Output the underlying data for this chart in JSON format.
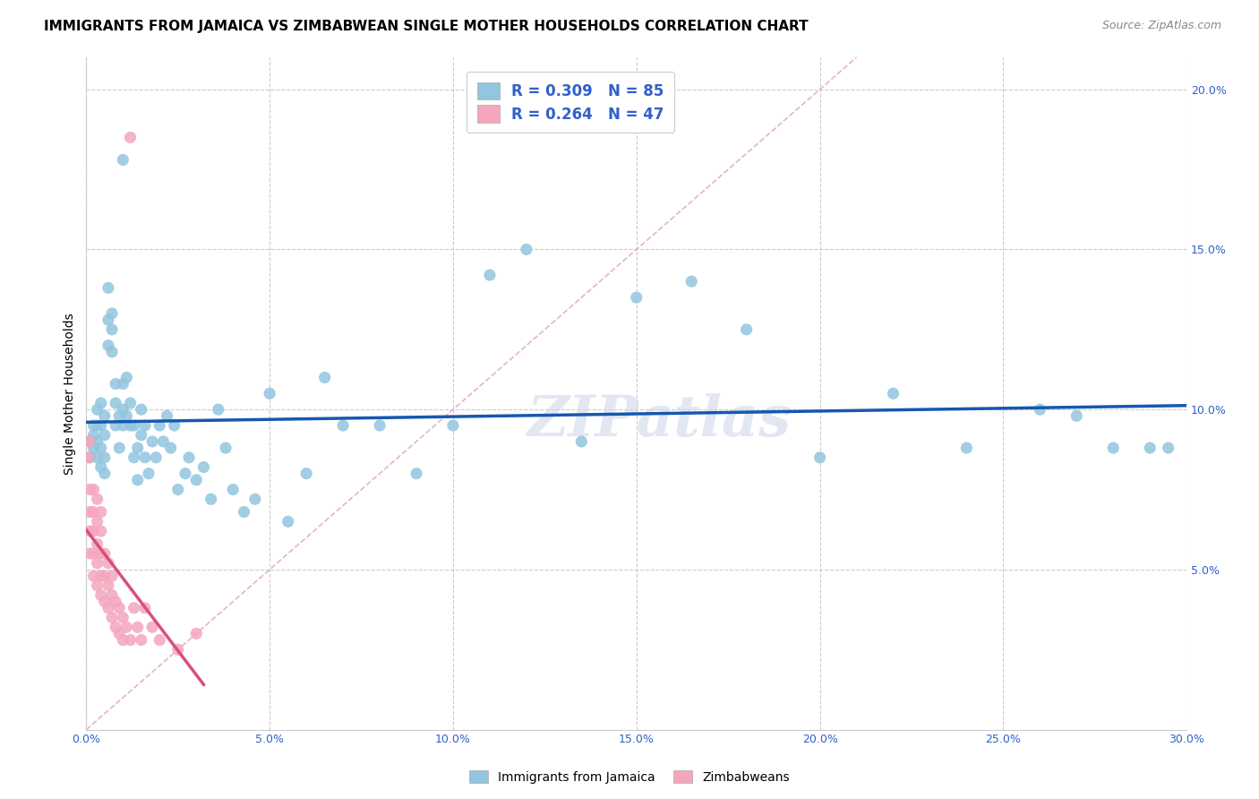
{
  "title": "IMMIGRANTS FROM JAMAICA VS ZIMBABWEAN SINGLE MOTHER HOUSEHOLDS CORRELATION CHART",
  "source": "Source: ZipAtlas.com",
  "ylabel": "Single Mother Households",
  "xlim": [
    0.0,
    0.3
  ],
  "ylim": [
    0.0,
    0.21
  ],
  "xticks": [
    0.0,
    0.05,
    0.1,
    0.15,
    0.2,
    0.25,
    0.3
  ],
  "yticks": [
    0.0,
    0.05,
    0.1,
    0.15,
    0.2
  ],
  "legend_label_blue": "Immigrants from Jamaica",
  "legend_label_pink": "Zimbabweans",
  "R_blue": 0.309,
  "N_blue": 85,
  "R_pink": 0.264,
  "N_pink": 47,
  "blue_color": "#92c5de",
  "pink_color": "#f4a6bd",
  "trend_blue": "#1558b0",
  "trend_pink": "#d94f7a",
  "trend_dashed_color": "#e0a0b8",
  "watermark": "ZIPatlas",
  "jamaica_x": [
    0.001,
    0.001,
    0.002,
    0.002,
    0.002,
    0.003,
    0.003,
    0.003,
    0.003,
    0.004,
    0.004,
    0.004,
    0.004,
    0.005,
    0.005,
    0.005,
    0.005,
    0.006,
    0.006,
    0.006,
    0.007,
    0.007,
    0.007,
    0.008,
    0.008,
    0.008,
    0.009,
    0.009,
    0.01,
    0.01,
    0.01,
    0.011,
    0.011,
    0.012,
    0.012,
    0.013,
    0.013,
    0.014,
    0.014,
    0.015,
    0.015,
    0.016,
    0.016,
    0.017,
    0.018,
    0.019,
    0.02,
    0.021,
    0.022,
    0.023,
    0.024,
    0.025,
    0.027,
    0.028,
    0.03,
    0.032,
    0.034,
    0.036,
    0.038,
    0.04,
    0.043,
    0.046,
    0.05,
    0.055,
    0.06,
    0.065,
    0.07,
    0.08,
    0.09,
    0.1,
    0.11,
    0.12,
    0.135,
    0.15,
    0.165,
    0.18,
    0.2,
    0.22,
    0.24,
    0.26,
    0.27,
    0.28,
    0.29,
    0.295,
    0.01
  ],
  "jamaica_y": [
    0.085,
    0.09,
    0.088,
    0.092,
    0.095,
    0.085,
    0.09,
    0.095,
    0.1,
    0.082,
    0.088,
    0.095,
    0.102,
    0.08,
    0.085,
    0.092,
    0.098,
    0.12,
    0.128,
    0.138,
    0.118,
    0.125,
    0.13,
    0.095,
    0.102,
    0.108,
    0.098,
    0.088,
    0.095,
    0.1,
    0.108,
    0.098,
    0.11,
    0.095,
    0.102,
    0.085,
    0.095,
    0.088,
    0.078,
    0.092,
    0.1,
    0.085,
    0.095,
    0.08,
    0.09,
    0.085,
    0.095,
    0.09,
    0.098,
    0.088,
    0.095,
    0.075,
    0.08,
    0.085,
    0.078,
    0.082,
    0.072,
    0.1,
    0.088,
    0.075,
    0.068,
    0.072,
    0.105,
    0.065,
    0.08,
    0.11,
    0.095,
    0.095,
    0.08,
    0.095,
    0.142,
    0.15,
    0.09,
    0.135,
    0.14,
    0.125,
    0.085,
    0.105,
    0.088,
    0.1,
    0.098,
    0.088,
    0.088,
    0.088,
    0.178
  ],
  "zimbabwe_x": [
    0.0005,
    0.0008,
    0.001,
    0.001,
    0.001,
    0.001,
    0.002,
    0.002,
    0.002,
    0.002,
    0.002,
    0.003,
    0.003,
    0.003,
    0.003,
    0.003,
    0.004,
    0.004,
    0.004,
    0.004,
    0.004,
    0.005,
    0.005,
    0.005,
    0.006,
    0.006,
    0.006,
    0.007,
    0.007,
    0.007,
    0.008,
    0.008,
    0.009,
    0.009,
    0.01,
    0.01,
    0.011,
    0.012,
    0.013,
    0.014,
    0.015,
    0.016,
    0.018,
    0.02,
    0.025,
    0.03,
    0.012
  ],
  "zimbabwe_y": [
    0.085,
    0.09,
    0.055,
    0.062,
    0.068,
    0.075,
    0.048,
    0.055,
    0.062,
    0.068,
    0.075,
    0.045,
    0.052,
    0.058,
    0.065,
    0.072,
    0.042,
    0.048,
    0.055,
    0.062,
    0.068,
    0.04,
    0.048,
    0.055,
    0.038,
    0.045,
    0.052,
    0.035,
    0.042,
    0.048,
    0.032,
    0.04,
    0.03,
    0.038,
    0.028,
    0.035,
    0.032,
    0.028,
    0.038,
    0.032,
    0.028,
    0.038,
    0.032,
    0.028,
    0.025,
    0.03,
    0.185
  ],
  "title_fontsize": 11,
  "source_fontsize": 9,
  "axis_fontsize": 9,
  "tick_color": "#3060cc"
}
